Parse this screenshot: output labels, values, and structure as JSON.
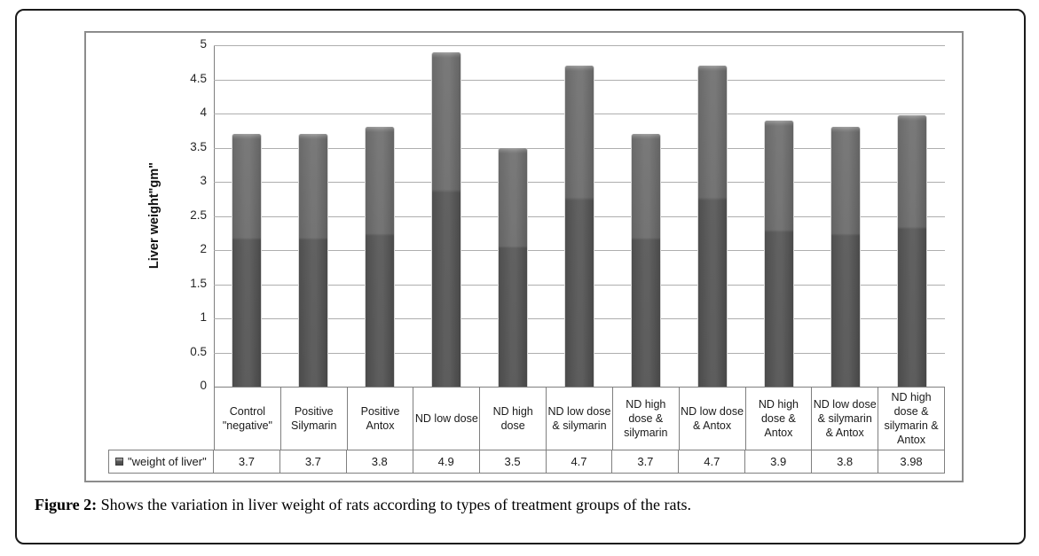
{
  "chart_data": {
    "type": "bar",
    "title": "",
    "ylabel": "Liver weight\"gm\"",
    "xlabel": "",
    "ylim": [
      0,
      5
    ],
    "ytick_step": 0.5,
    "yticks": [
      "5",
      "4.5",
      "4",
      "3.5",
      "3",
      "2.5",
      "2",
      "1.5",
      "1",
      "0.5",
      "0"
    ],
    "grid": true,
    "legend_position": "table-left",
    "bar_color": "#5a5a5a",
    "categories": [
      "Control \"negative\"",
      "Positive Silymarin",
      "Positive Antox",
      "ND low dose",
      "ND high dose",
      "ND low dose & silymarin",
      "ND high dose & silymarin",
      "ND low dose & Antox",
      "ND high dose & Antox",
      "ND low dose & silymarin & Antox",
      "ND high dose & silymarin & Antox"
    ],
    "series": [
      {
        "name": "\"weight of liver\"",
        "values": [
          3.7,
          3.7,
          3.8,
          4.9,
          3.5,
          4.7,
          3.7,
          4.7,
          3.9,
          3.8,
          3.98
        ],
        "display_values": [
          "3.7",
          "3.7",
          "3.8",
          "4.9",
          "3.5",
          "4.7",
          "3.7",
          "4.7",
          "3.9",
          "3.8",
          "3.98"
        ]
      }
    ]
  },
  "caption": {
    "label": "Figure 2:",
    "text": " Shows the variation in liver weight of rats according to types of treatment groups of the rats."
  }
}
